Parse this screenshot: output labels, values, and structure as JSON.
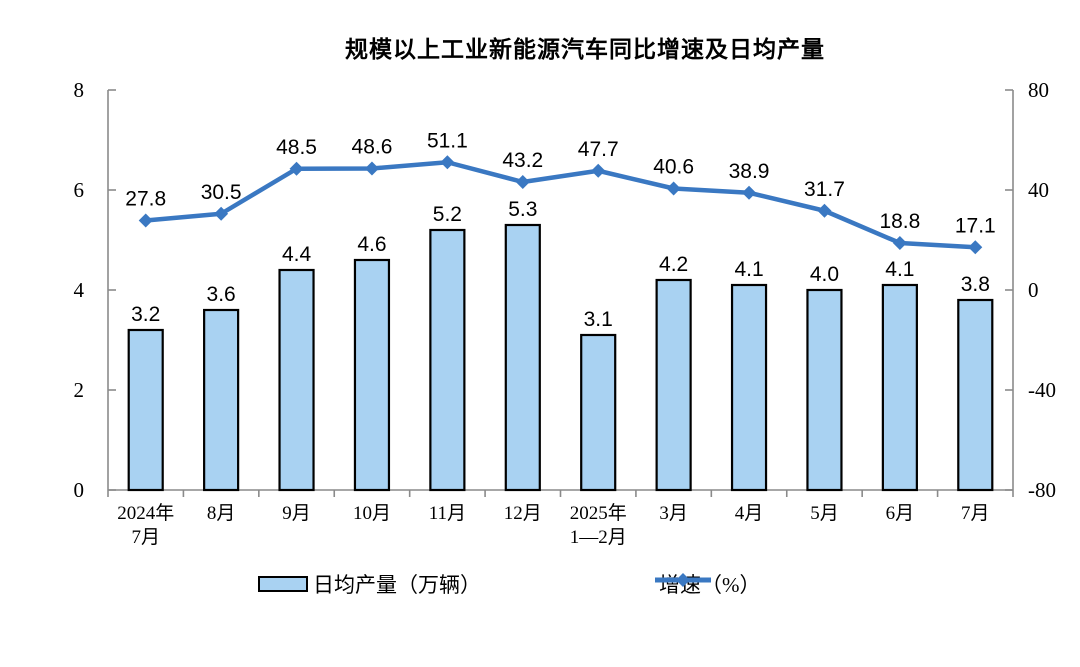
{
  "title": "规模以上工业新能源汽车同比增速及日均产量",
  "legend": {
    "bar_label": "日均产量（万辆）",
    "line_label": "增速（%）"
  },
  "colors": {
    "bar_fill": "#a9d2f2",
    "bar_border": "#000000",
    "line": "#3a78c2",
    "axis": "#8a8a8a",
    "text": "#000000"
  },
  "chart_data": {
    "type": "combo-bar-line",
    "categories": [
      [
        "2024年",
        "7月"
      ],
      [
        "8月"
      ],
      [
        "9月"
      ],
      [
        "10月"
      ],
      [
        "11月"
      ],
      [
        "12月"
      ],
      [
        "2025年",
        "1—2月"
      ],
      [
        "3月"
      ],
      [
        "4月"
      ],
      [
        "5月"
      ],
      [
        "6月"
      ],
      [
        "7月"
      ]
    ],
    "series": [
      {
        "name": "日均产量（万辆）",
        "type": "bar",
        "axis": "left",
        "values": [
          3.2,
          3.6,
          4.4,
          4.6,
          5.2,
          5.3,
          3.1,
          4.2,
          4.1,
          4.0,
          4.1,
          3.8
        ]
      },
      {
        "name": "增速（%）",
        "type": "line",
        "axis": "right",
        "values": [
          27.8,
          30.5,
          48.5,
          48.6,
          51.1,
          43.2,
          47.7,
          40.6,
          38.9,
          31.7,
          18.8,
          17.1
        ]
      }
    ],
    "left_axis": {
      "min": 0,
      "max": 8,
      "ticks": [
        0,
        2,
        4,
        6,
        8
      ]
    },
    "right_axis": {
      "min": -80,
      "max": 80,
      "ticks": [
        80,
        40,
        0,
        -40,
        -80
      ]
    },
    "grid": false,
    "legend_position": "bottom",
    "data_labels": true
  }
}
